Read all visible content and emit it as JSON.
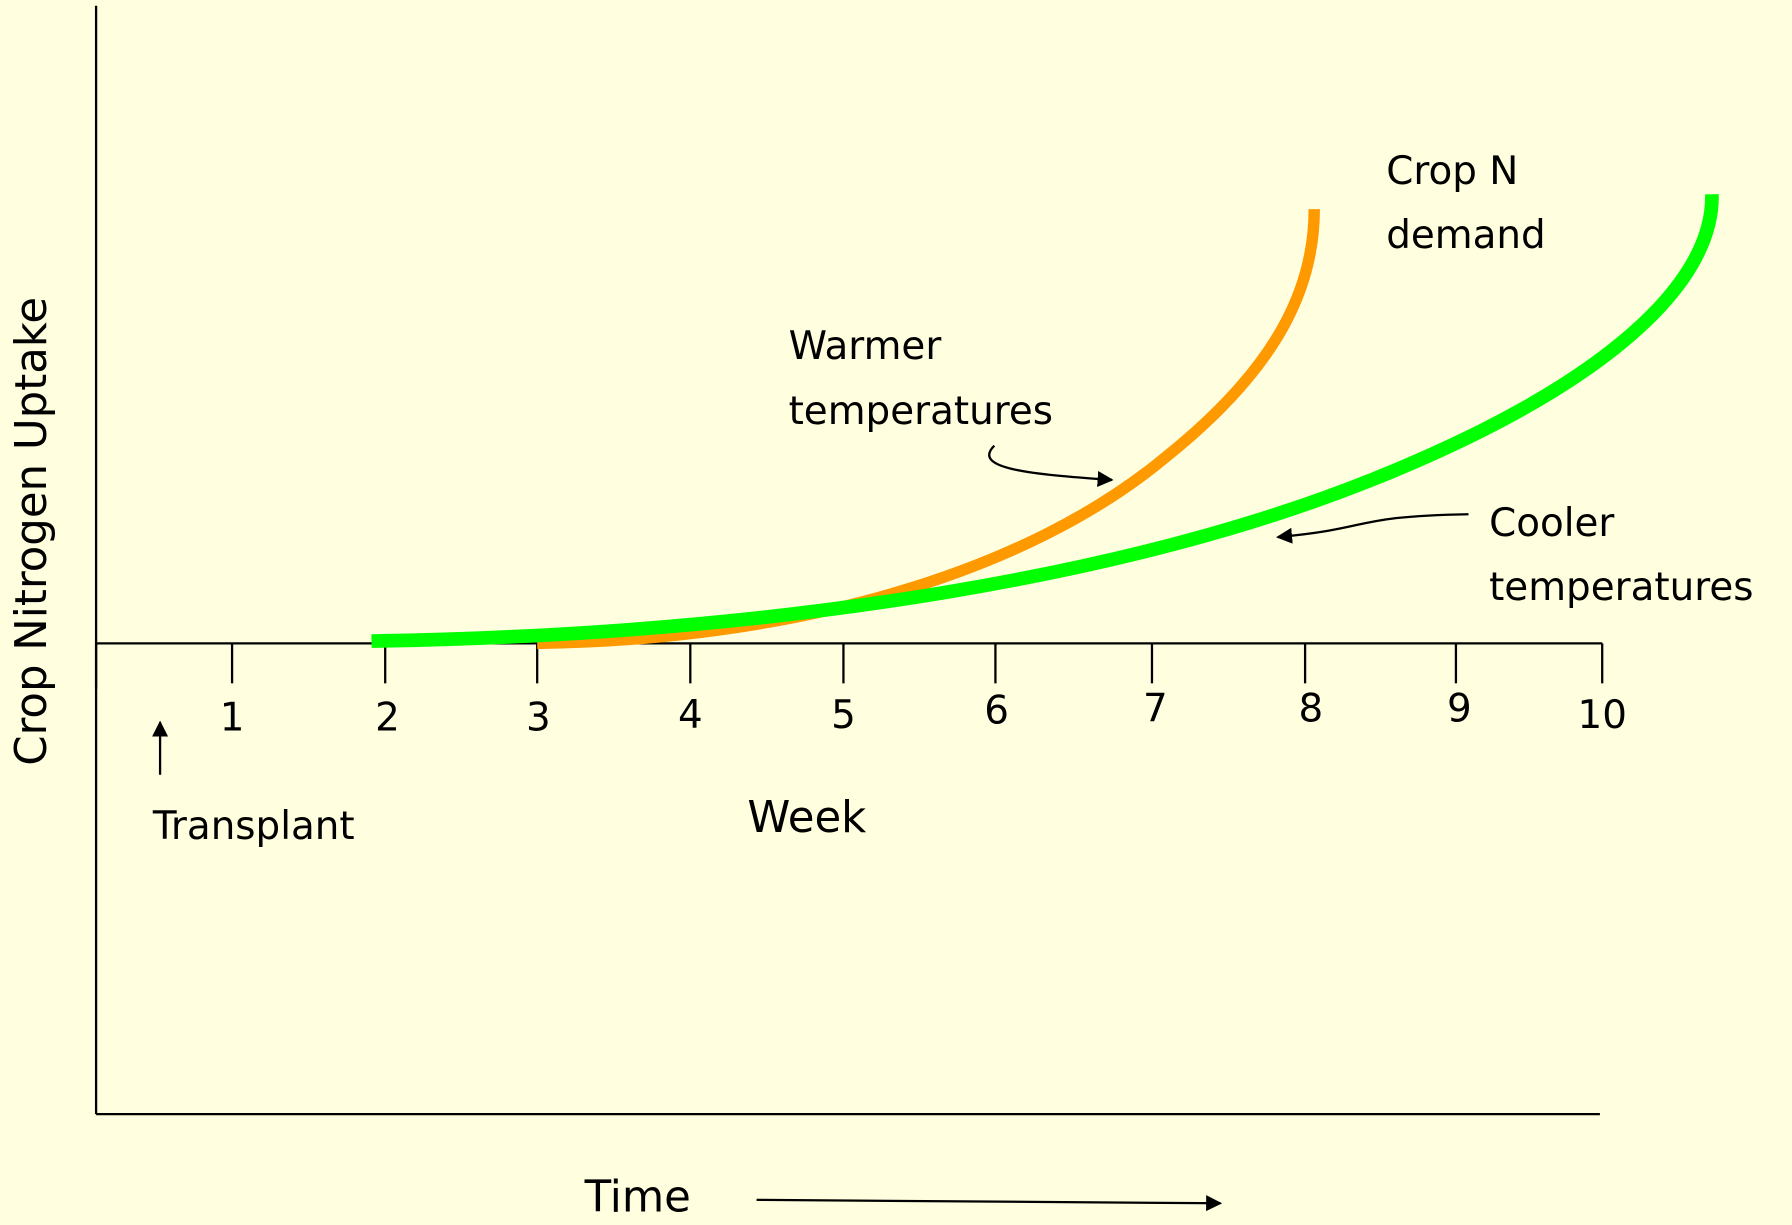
{
  "axis_label": "Crop Nitrogen Uptake",
  "week_ticks": [
    "1",
    "2",
    "3",
    "4",
    "5",
    "6",
    "7",
    "8",
    "9",
    "10"
  ],
  "week_label": "Week",
  "transplant": "Transplant",
  "time_label": "Time",
  "annotations": {
    "demand": [
      "Crop N",
      "demand"
    ],
    "warmer": [
      "Warmer",
      "temperatures"
    ],
    "cooler": [
      "Cooler",
      "temperatures"
    ]
  }
}
